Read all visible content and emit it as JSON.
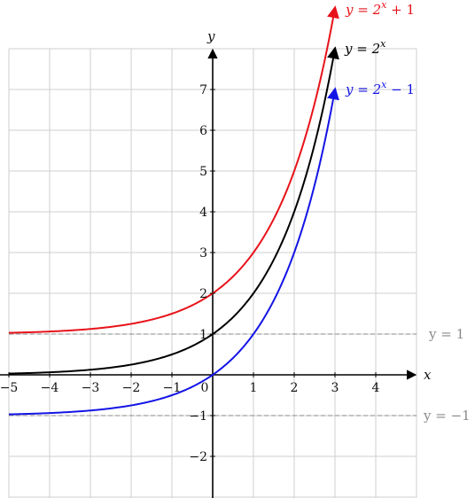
{
  "chart_data": {
    "type": "line",
    "title": "",
    "xlabel": "x",
    "ylabel": "y",
    "xlim": [
      -5,
      5
    ],
    "ylim": [
      -3,
      8
    ],
    "grid": true,
    "x_ticks": [
      "−5",
      "−4",
      "−3",
      "−2",
      "−1",
      "0",
      "1",
      "2",
      "3",
      "4"
    ],
    "y_ticks": [
      "−2",
      "−1",
      "1",
      "2",
      "3",
      "4",
      "5",
      "6",
      "7"
    ],
    "x_tick_values": [
      -5,
      -4,
      -3,
      -2,
      -1,
      0,
      1,
      2,
      3,
      4
    ],
    "y_tick_values": [
      -2,
      -1,
      1,
      2,
      3,
      4,
      5,
      6,
      7
    ],
    "series": [
      {
        "name": "y = 2^x + 1",
        "label_main": "y = 2",
        "label_sup": "x",
        "label_tail": " + 1",
        "color": "#e8131a",
        "x": [
          -5,
          -4,
          -3,
          -2,
          -1,
          0,
          0.5,
          1,
          1.5,
          2,
          2.5,
          3
        ],
        "y": [
          1.03,
          1.06,
          1.13,
          1.25,
          1.5,
          2,
          2.41,
          3,
          3.83,
          5,
          6.66,
          9
        ]
      },
      {
        "name": "y = 2^x",
        "label_main": "y = 2",
        "label_sup": "x",
        "label_tail": "",
        "color": "#000000",
        "x": [
          -5,
          -4,
          -3,
          -2,
          -1,
          0,
          0.5,
          1,
          1.5,
          2,
          2.5,
          3
        ],
        "y": [
          0.03,
          0.06,
          0.13,
          0.25,
          0.5,
          1,
          1.41,
          2,
          2.83,
          4,
          5.66,
          8
        ]
      },
      {
        "name": "y = 2^x − 1",
        "label_main": "y = 2",
        "label_sup": "x",
        "label_tail": " − 1",
        "color": "#1414e6",
        "x": [
          -5,
          -4,
          -3,
          -2,
          -1,
          0,
          0.5,
          1,
          1.5,
          2,
          2.5,
          3
        ],
        "y": [
          -0.97,
          -0.94,
          -0.88,
          -0.75,
          -0.5,
          0,
          0.41,
          1,
          1.83,
          3,
          4.66,
          7
        ]
      }
    ],
    "asymptotes": [
      {
        "y": 1,
        "label": "y = 1",
        "color": "#8a8a8a"
      },
      {
        "y": -1,
        "label": "y = −1",
        "color": "#8a8a8a"
      }
    ]
  }
}
